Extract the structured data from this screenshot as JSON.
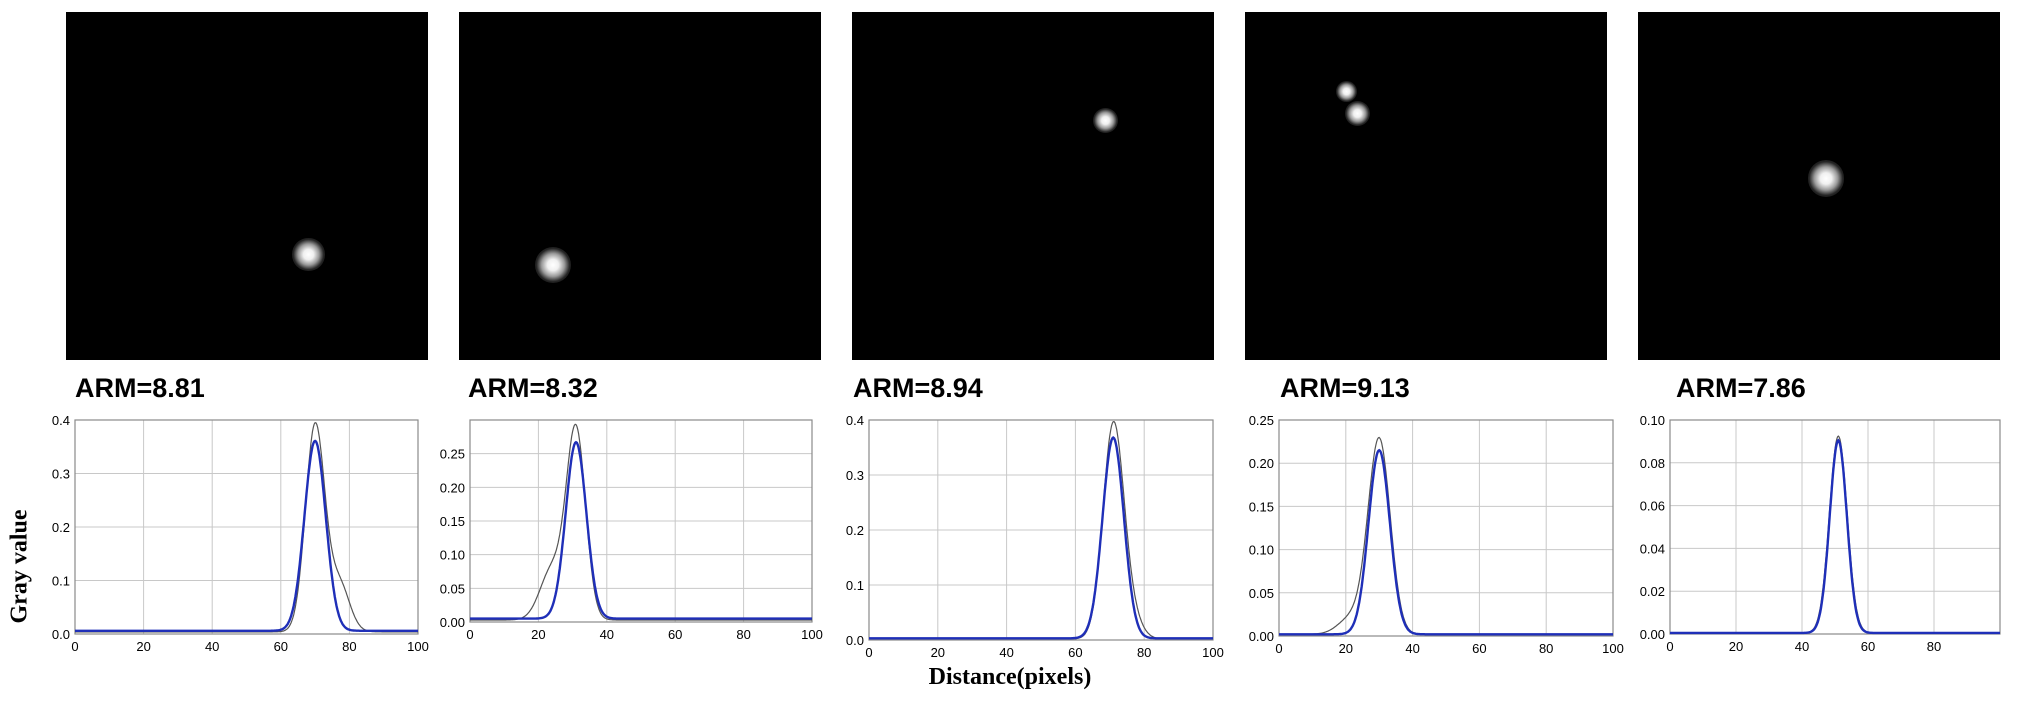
{
  "figure": {
    "ylabel": "Gray value",
    "xlabel": "Distance(pixels)"
  },
  "colors": {
    "fit_curve": "#1f2fb8",
    "measured_curve": "#555555",
    "grid": "#c8c8c8",
    "panel_background": "#000000"
  },
  "chart_data": [
    {
      "type": "line",
      "title": "ARM=8.81",
      "xlim": [
        0,
        100
      ],
      "ylim": [
        0,
        0.4
      ],
      "xticks": [
        0,
        20,
        40,
        60,
        80,
        100
      ],
      "yticks": [
        0.0,
        0.1,
        0.2,
        0.3,
        0.4
      ],
      "ytick_labels": [
        "0.0",
        "0.1",
        "0.2",
        "0.3",
        "0.4"
      ],
      "fit": {
        "center": 70,
        "sigma": 3.1,
        "amplitude": 0.355,
        "baseline": 0.006
      },
      "measured": {
        "center": 70,
        "sigma": 2.8,
        "amplitude": 0.385,
        "baseline": 0.004,
        "shoulder": {
          "center": 77,
          "sigma": 3,
          "amplitude": 0.09
        }
      },
      "spot_image": {
        "x": 0.67,
        "y": 0.67,
        "size": 0.09,
        "secondary": null
      }
    },
    {
      "type": "line",
      "title": "ARM=8.32",
      "xlim": [
        0,
        100
      ],
      "ylim": [
        0,
        0.3
      ],
      "xticks": [
        0,
        20,
        40,
        60,
        80,
        100
      ],
      "yticks": [
        0.0,
        0.05,
        0.1,
        0.15,
        0.2,
        0.25
      ],
      "ytick_labels": [
        "0.00",
        "0.05",
        "0.10",
        "0.15",
        "0.20",
        "0.25"
      ],
      "fit": {
        "center": 31,
        "sigma": 3.0,
        "amplitude": 0.262,
        "baseline": 0.005
      },
      "measured": {
        "center": 31,
        "sigma": 2.8,
        "amplitude": 0.28,
        "baseline": 0.003,
        "shoulder": {
          "center": 24,
          "sigma": 3.5,
          "amplitude": 0.075
        }
      },
      "spot_image": {
        "x": 0.26,
        "y": 0.7,
        "size": 0.1,
        "secondary": null
      }
    },
    {
      "type": "line",
      "title": "ARM=8.94",
      "xlim": [
        0,
        100
      ],
      "ylim": [
        0,
        0.4
      ],
      "xticks": [
        0,
        20,
        40,
        60,
        80,
        100
      ],
      "yticks": [
        0.0,
        0.1,
        0.2,
        0.3,
        0.4
      ],
      "ytick_labels": [
        "0.0",
        "0.1",
        "0.2",
        "0.3",
        "0.4"
      ],
      "fit": {
        "center": 71,
        "sigma": 3.1,
        "amplitude": 0.365,
        "baseline": 0.003
      },
      "measured": {
        "center": 71,
        "sigma": 3.0,
        "amplitude": 0.385,
        "baseline": 0.002,
        "shoulder": {
          "center": 76,
          "sigma": 3,
          "amplitude": 0.04
        }
      },
      "spot_image": {
        "x": 0.7,
        "y": 0.3,
        "size": 0.07,
        "secondary": null
      }
    },
    {
      "type": "line",
      "title": "ARM=9.13",
      "xlim": [
        0,
        100
      ],
      "ylim": [
        0,
        0.25
      ],
      "xticks": [
        0,
        20,
        40,
        60,
        80,
        100
      ],
      "yticks": [
        0.0,
        0.05,
        0.1,
        0.15,
        0.2,
        0.25
      ],
      "ytick_labels": [
        "0.00",
        "0.05",
        "0.10",
        "0.15",
        "0.20",
        "0.25"
      ],
      "fit": {
        "center": 30,
        "sigma": 3.2,
        "amplitude": 0.213,
        "baseline": 0.002
      },
      "measured": {
        "center": 30,
        "sigma": 3.3,
        "amplitude": 0.225,
        "baseline": 0.002,
        "shoulder": {
          "center": 22,
          "sigma": 4,
          "amplitude": 0.02
        }
      },
      "spot_image": {
        "x": 0.31,
        "y": 0.28,
        "size": 0.07,
        "secondary": {
          "x": 0.28,
          "y": 0.22,
          "size": 0.06
        }
      }
    },
    {
      "type": "line",
      "title": "ARM=7.86",
      "xlim": [
        0,
        100
      ],
      "ylim": [
        0,
        0.1
      ],
      "xticks": [
        0,
        20,
        40,
        60,
        80
      ],
      "yticks": [
        0.0,
        0.02,
        0.04,
        0.06,
        0.08,
        0.1
      ],
      "ytick_labels": [
        "0.00",
        "0.02",
        "0.04",
        "0.06",
        "0.08",
        "0.10"
      ],
      "fit": {
        "center": 51,
        "sigma": 2.6,
        "amplitude": 0.09,
        "baseline": 0.0005
      },
      "measured": {
        "center": 51,
        "sigma": 2.7,
        "amplitude": 0.092,
        "baseline": 0.0005,
        "shoulder": null
      },
      "spot_image": {
        "x": 0.52,
        "y": 0.46,
        "size": 0.1,
        "secondary": null
      }
    }
  ]
}
